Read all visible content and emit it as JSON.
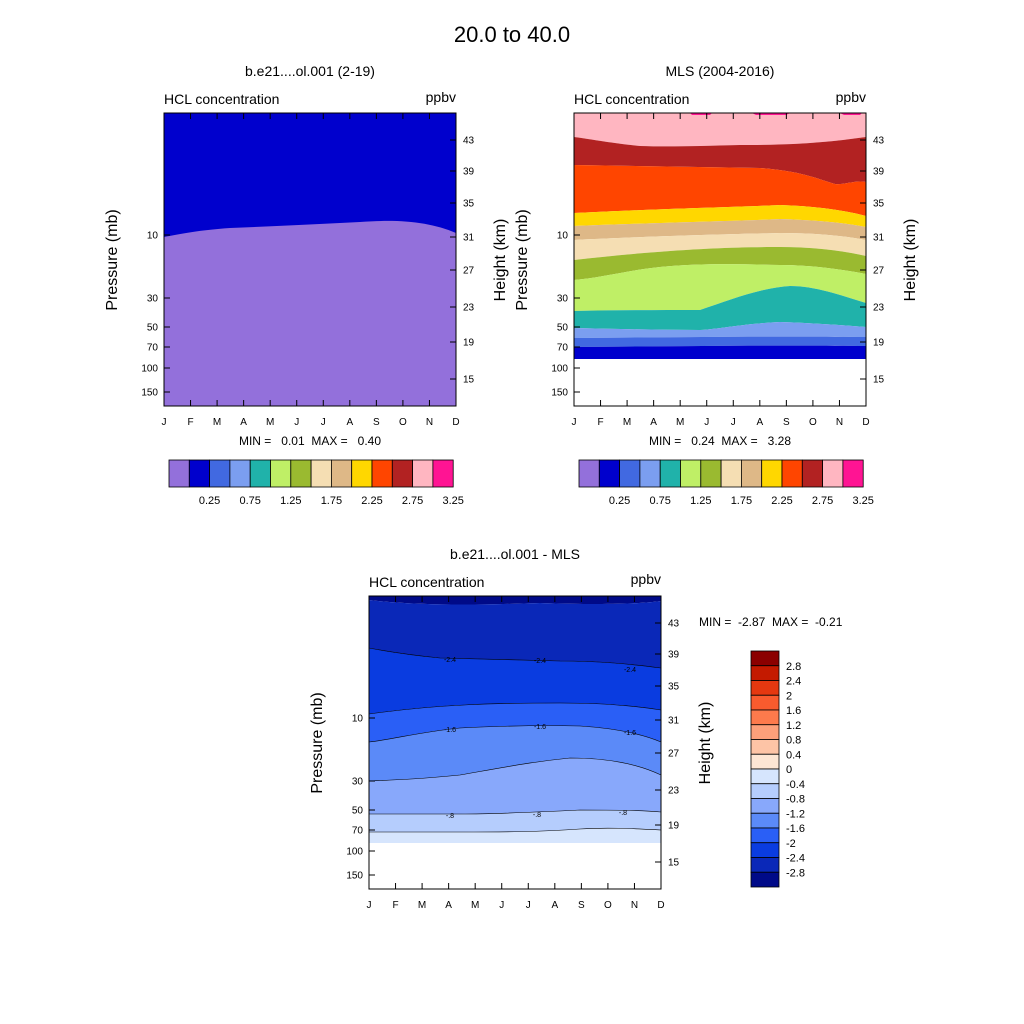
{
  "page_title": "20.0 to  40.0",
  "axis_labels": {
    "months": [
      "J",
      "F",
      "M",
      "A",
      "M",
      "J",
      "J",
      "A",
      "S",
      "O",
      "N",
      "D"
    ],
    "pressure_ticks": [
      "10",
      "30",
      "50",
      "70",
      "100",
      "150"
    ],
    "height_ticks": [
      "43",
      "39",
      "35",
      "31",
      "27",
      "23",
      "19",
      "15"
    ],
    "left_axis_title": "Pressure (mb)",
    "right_axis_title": "Height (km)"
  },
  "panels": {
    "model": {
      "title": "b.e21....ol.001 (2-19)",
      "left_string": "HCL concentration",
      "right_string": "ppbv",
      "stats": "MIN =   0.01  MAX =   0.40"
    },
    "mls": {
      "title": "MLS (2004-2016)",
      "left_string": "HCL concentration",
      "right_string": "ppbv",
      "stats": "MIN =   0.24  MAX =   3.28"
    },
    "diff": {
      "title": "b.e21....ol.001 - MLS",
      "left_string": "HCL concentration",
      "right_string": "ppbv",
      "stats": "MIN =  -2.87  MAX =  -0.21"
    }
  },
  "colorbar_top": {
    "labels": [
      "0.25",
      "0.75",
      "1.25",
      "1.75",
      "2.25",
      "2.75",
      "3.25"
    ],
    "colors": [
      "#9370db",
      "#0000cd",
      "#4169e1",
      "#7b9ef0",
      "#20b2aa",
      "#bfef66",
      "#9aba30",
      "#f5deb3",
      "#deb887",
      "#ffd700",
      "#ff4500",
      "#b22222",
      "#ffb6c1",
      "#ff1493"
    ]
  },
  "colorbar_diff": {
    "labels": [
      "2.8",
      "2.4",
      "2",
      "1.6",
      "1.2",
      "0.8",
      "0.4",
      "0",
      "-0.4",
      "-0.8",
      "-1.2",
      "-1.6",
      "-2",
      "-2.4",
      "-2.8"
    ],
    "colors": [
      "#8b0000",
      "#c41a00",
      "#e53810",
      "#f95b2e",
      "#fd7a4c",
      "#fda07a",
      "#fdc4a6",
      "#fde6d4",
      "#d6e5fd",
      "#b5cdfd",
      "#88a8fb",
      "#5b8af8",
      "#2a5ff6",
      "#0a3ce0",
      "#0a28b8",
      "#000a88"
    ]
  },
  "chart_data": [
    {
      "type": "heatmap",
      "title": "b.e21....ol.001 (2-19)",
      "xlabel": "",
      "ylabel": "Pressure (mb)",
      "y2label": "Height (km)",
      "x": [
        "J",
        "F",
        "M",
        "A",
        "M",
        "J",
        "J",
        "A",
        "S",
        "O",
        "N",
        "D"
      ],
      "variable": "HCL concentration",
      "units": "ppbv",
      "min": 0.01,
      "max": 0.4,
      "contour_levels": [
        0.25
      ],
      "fill_colors": [
        "#9370db",
        "#0000cd"
      ],
      "boundary_pressure_mb": [
        9.7,
        9.5,
        9.0,
        8.7,
        8.6,
        8.5,
        8.4,
        8.2,
        8.1,
        8.2,
        8.8,
        9.6
      ]
    },
    {
      "type": "heatmap",
      "title": "MLS (2004-2016)",
      "xlabel": "",
      "ylabel": "Pressure (mb)",
      "y2label": "Height (km)",
      "x": [
        "J",
        "F",
        "M",
        "A",
        "M",
        "J",
        "J",
        "A",
        "S",
        "O",
        "N",
        "D"
      ],
      "variable": "HCL concentration",
      "units": "ppbv",
      "min": 0.24,
      "max": 3.28,
      "contour_levels": [
        0.25,
        0.5,
        0.75,
        1.0,
        1.25,
        1.5,
        1.75,
        2.0,
        2.25,
        2.5,
        2.75,
        3.0,
        3.25
      ],
      "no_data_below_mb": 100
    },
    {
      "type": "heatmap",
      "title": "b.e21....ol.001 - MLS",
      "xlabel": "",
      "ylabel": "Pressure (mb)",
      "y2label": "Height (km)",
      "x": [
        "J",
        "F",
        "M",
        "A",
        "M",
        "J",
        "J",
        "A",
        "S",
        "O",
        "N",
        "D"
      ],
      "variable": "HCL concentration",
      "units": "ppbv",
      "min": -2.87,
      "max": -0.21,
      "contour_levels": [
        -2.8,
        -2.4,
        -2,
        -1.6,
        -1.2,
        -0.8,
        -0.4,
        0,
        0.4,
        0.8,
        1.2,
        1.6,
        2,
        2.4,
        2.8
      ],
      "line_labels": [
        "-2.4",
        "-1.6",
        "-.8"
      ],
      "no_data_below_mb": 100
    }
  ]
}
